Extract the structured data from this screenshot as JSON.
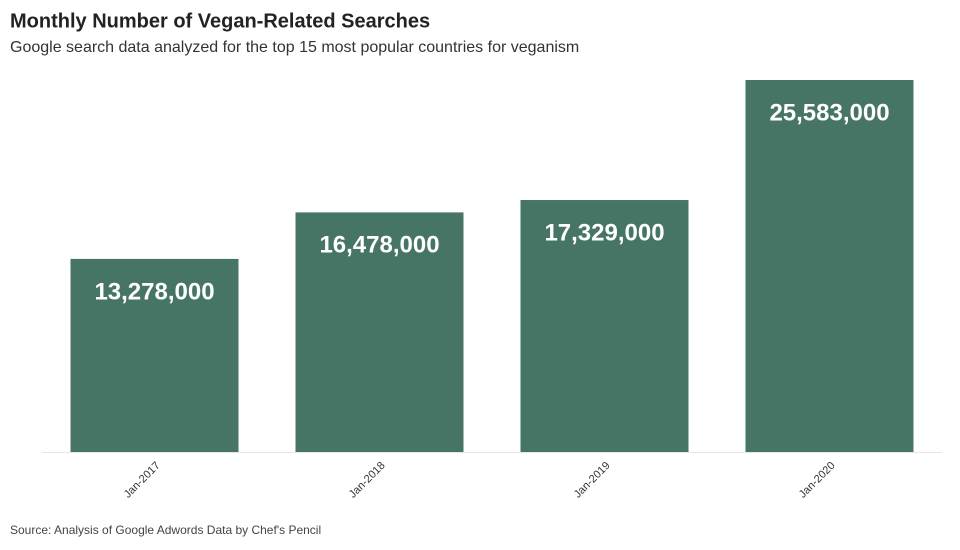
{
  "chart_data": {
    "type": "bar",
    "title": "Monthly Number of Vegan-Related Searches",
    "subtitle": "Google search data analyzed for the top 15 most popular countries for veganism",
    "source": "Source: Analysis of Google Adwords Data by Chef's Pencil",
    "categories": [
      "Jan-2017",
      "Jan-2018",
      "Jan-2019",
      "Jan-2020"
    ],
    "values": [
      13278000,
      16478000,
      17329000,
      25583000
    ],
    "value_labels": [
      "13,278,000",
      "16,478,000",
      "17,329,000",
      "25,583,000"
    ],
    "color": "#467565"
  }
}
